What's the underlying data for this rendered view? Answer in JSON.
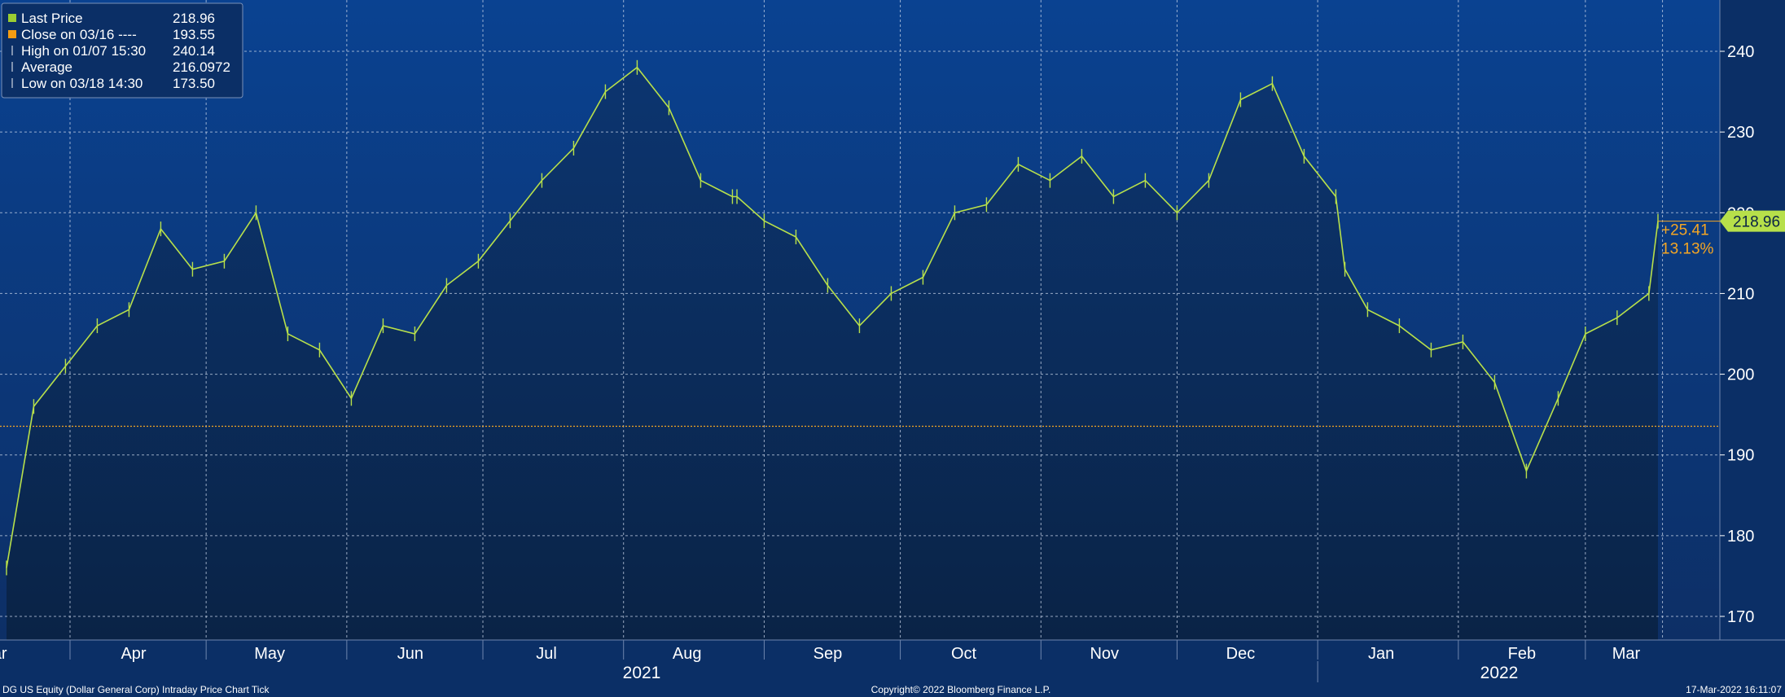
{
  "chart_data": {
    "type": "line",
    "title": "",
    "xlabel": "",
    "ylabel": "",
    "ylim": [
      168,
      248
    ],
    "y_ticks": [
      170,
      180,
      190,
      200,
      210,
      220,
      230,
      240
    ],
    "x_month_labels": [
      "Mar",
      "Apr",
      "May",
      "Jun",
      "Jul",
      "Aug",
      "Sep",
      "Oct",
      "Nov",
      "Dec",
      "Jan",
      "Feb",
      "Mar"
    ],
    "x_year_labels": [
      "2021",
      "2022"
    ],
    "grid": true,
    "legend_position": "top-left",
    "series": [
      {
        "name": "Last Price",
        "x": [
          "2021-03-18",
          "2021-03-24",
          "2021-03-31",
          "2021-04-07",
          "2021-04-14",
          "2021-04-21",
          "2021-04-28",
          "2021-05-05",
          "2021-05-12",
          "2021-05-19",
          "2021-05-26",
          "2021-06-02",
          "2021-06-09",
          "2021-06-16",
          "2021-06-23",
          "2021-06-30",
          "2021-07-07",
          "2021-07-14",
          "2021-07-21",
          "2021-07-28",
          "2021-08-04",
          "2021-08-11",
          "2021-08-18",
          "2021-08-25",
          "2021-08-26",
          "2021-09-01",
          "2021-09-08",
          "2021-09-15",
          "2021-09-22",
          "2021-09-29",
          "2021-10-06",
          "2021-10-13",
          "2021-10-20",
          "2021-10-27",
          "2021-11-03",
          "2021-11-10",
          "2021-11-17",
          "2021-11-24",
          "2021-12-01",
          "2021-12-08",
          "2021-12-15",
          "2021-12-22",
          "2021-12-29",
          "2022-01-05",
          "2022-01-07",
          "2022-01-12",
          "2022-01-19",
          "2022-01-26",
          "2022-02-02",
          "2022-02-09",
          "2022-02-16",
          "2022-02-23",
          "2022-03-01",
          "2022-03-08",
          "2022-03-15",
          "2022-03-17"
        ],
        "values": [
          176,
          196,
          201,
          206,
          208,
          218,
          213,
          214,
          220,
          205,
          203,
          197,
          206,
          205,
          211,
          214,
          219,
          224,
          228,
          235,
          238,
          233,
          224,
          222,
          222,
          219,
          217,
          211,
          206,
          210,
          212,
          220,
          221,
          226,
          224,
          227,
          222,
          224,
          220,
          224,
          234,
          236,
          227,
          222,
          213,
          208,
          206,
          203,
          204,
          199,
          188,
          197,
          205,
          207,
          210,
          218.96
        ]
      },
      {
        "name": "Close on 03/16",
        "values": [
          193.55
        ]
      },
      {
        "name": "High on 01/07 15:30",
        "values": [
          240.14
        ]
      },
      {
        "name": "Average",
        "values": [
          216.0972
        ]
      },
      {
        "name": "Low on 03/18 14:30",
        "values": [
          173.5
        ]
      }
    ],
    "legend": [
      {
        "label": "Last Price",
        "value": "218.96",
        "color": "#9acd32"
      },
      {
        "label": "Close on 03/16 ----",
        "value": "193.55",
        "color": "#f39c12"
      },
      {
        "label": "High on 01/07 15:30",
        "value": "240.14",
        "color": "#ffffff"
      },
      {
        "label": "Average",
        "value": "216.0972",
        "color": "#ffffff"
      },
      {
        "label": "Low on 03/18 14:30",
        "value": "173.50",
        "color": "#ffffff"
      }
    ],
    "last_price_tag": "218.96",
    "change_abs": "+25.41",
    "change_pct": "13.13%",
    "reference_close": 193.55
  },
  "footer": {
    "left": "DG US Equity (Dollar General Corp) Intraday Price Chart   Tick",
    "center": "Copyright© 2022 Bloomberg Finance L.P.",
    "right": "17-Mar-2022 16:11:07"
  },
  "colors": {
    "background": "#0b2a5b",
    "plot_top": "#0a4291",
    "fill_bottom": "#0a2346",
    "price_line": "#b8e04a",
    "close_line": "#f5a623",
    "grid": "#c8d4e8",
    "tag_bg": "#b7e04a",
    "change_text": "#f5a623"
  }
}
